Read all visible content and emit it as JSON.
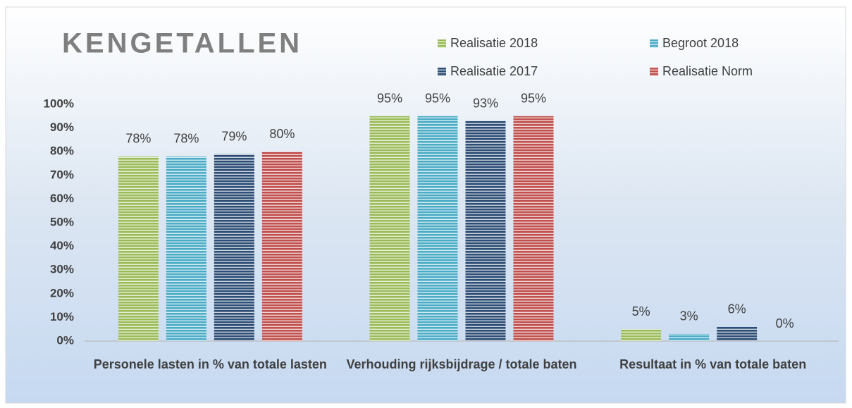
{
  "chart_data": {
    "type": "bar",
    "title": "KENGETALLEN",
    "categories": [
      "Personele lasten in % van totale lasten",
      "Verhouding rijksbijdrage / totale baten",
      "Resultaat in % van totale baten"
    ],
    "series": [
      {
        "name": "Realisatie 2018",
        "color": "#9bbb59",
        "values": [
          78,
          95,
          5
        ],
        "value_labels": [
          "78%",
          "95%",
          "5%"
        ]
      },
      {
        "name": "Begroot 2018",
        "color": "#4bacc6",
        "values": [
          78,
          95,
          3
        ],
        "value_labels": [
          "78%",
          "95%",
          "3%"
        ]
      },
      {
        "name": "Realisatie 2017",
        "color": "#2c4d75",
        "values": [
          79,
          93,
          6
        ],
        "value_labels": [
          "79%",
          "93%",
          "6%"
        ]
      },
      {
        "name": "Realisatie Norm",
        "color": "#c0504d",
        "values": [
          80,
          95,
          0
        ],
        "value_labels": [
          "80%",
          "95%",
          "0%"
        ]
      }
    ],
    "ylim": [
      0,
      100
    ],
    "yticks": [
      {
        "value": 0,
        "label": "0%"
      },
      {
        "value": 10,
        "label": "10%"
      },
      {
        "value": 20,
        "label": "20%"
      },
      {
        "value": 30,
        "label": "30%"
      },
      {
        "value": 40,
        "label": "40%"
      },
      {
        "value": 50,
        "label": "50%"
      },
      {
        "value": 60,
        "label": "60%"
      },
      {
        "value": 70,
        "label": "70%"
      },
      {
        "value": 80,
        "label": "80%"
      },
      {
        "value": 90,
        "label": "90%"
      },
      {
        "value": 100,
        "label": "100%"
      }
    ],
    "grid": false,
    "legend": "top-right"
  }
}
